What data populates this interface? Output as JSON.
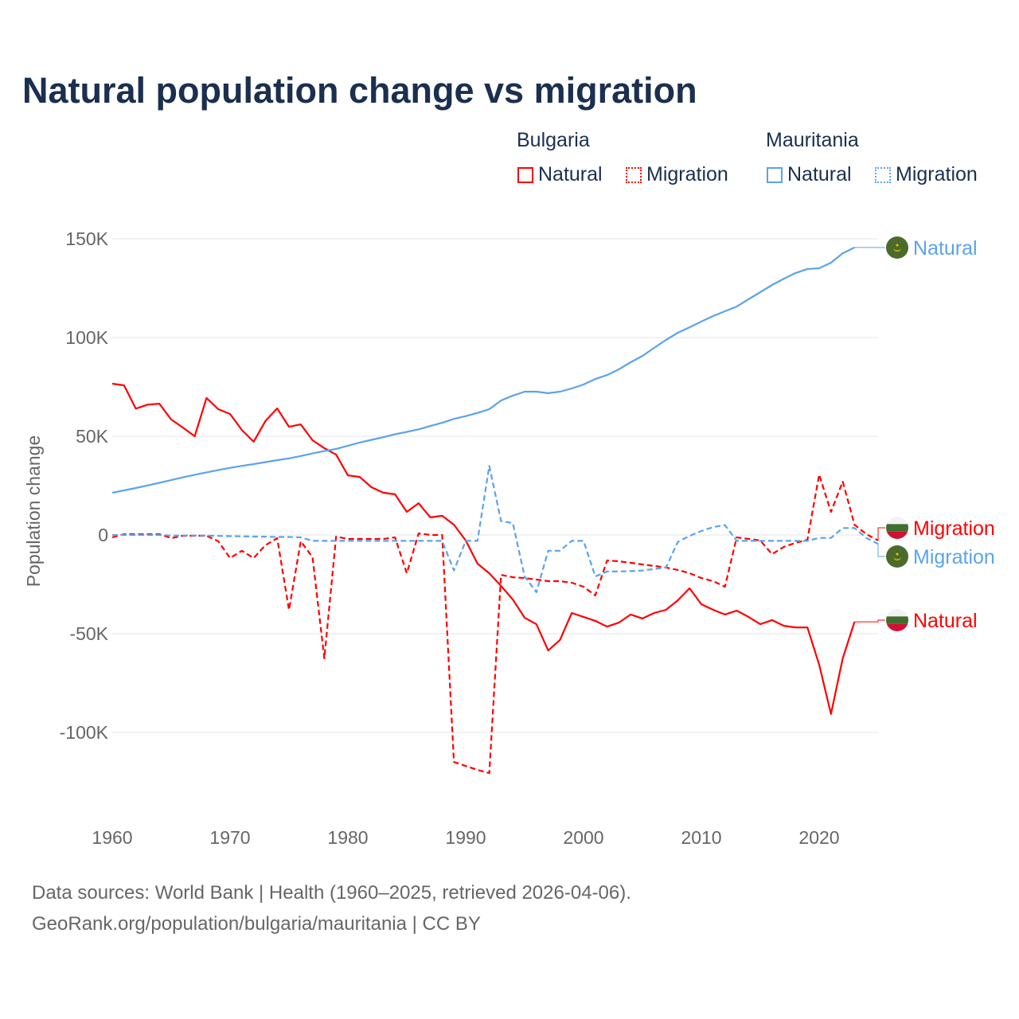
{
  "title": "Natural population change vs migration",
  "legend": {
    "groups": [
      {
        "name": "Bulgaria",
        "items": [
          "Natural",
          "Migration"
        ],
        "color": "#ff0000"
      },
      {
        "name": "Mauritania",
        "items": [
          "Natural",
          "Migration"
        ],
        "color": "#5ba3eb"
      }
    ]
  },
  "footer": {
    "line1": "Data sources: World Bank | Health (1960–2025, retrieved 2026-04-06).",
    "line2": "GeoRank.org/population/bulgaria/mauritania | CC BY"
  },
  "end_labels": [
    {
      "series": "mau_nat",
      "text": "Natural",
      "country": "Mauritania"
    },
    {
      "series": "bul_mig",
      "text": "Migration",
      "country": "Bulgaria"
    },
    {
      "series": "mau_mig",
      "text": "Migration",
      "country": "Mauritania"
    },
    {
      "series": "bul_nat",
      "text": "Natural",
      "country": "Bulgaria"
    }
  ],
  "chart_data": {
    "type": "line",
    "title": "Natural population change vs migration",
    "xlabel": "",
    "ylabel": "Population change",
    "xlim": [
      1960,
      2025
    ],
    "ylim": [
      -130000,
      160000
    ],
    "x_ticks": [
      1960,
      1970,
      1980,
      1990,
      2000,
      2010,
      2020
    ],
    "y_ticks": [
      {
        "value": 150000,
        "label": "150K"
      },
      {
        "value": 100000,
        "label": "100K"
      },
      {
        "value": 50000,
        "label": "50K"
      },
      {
        "value": 0,
        "label": "0"
      },
      {
        "value": -50000,
        "label": "-50K"
      },
      {
        "value": -100000,
        "label": "-100K"
      }
    ],
    "grid": true,
    "legend_position": "top-right",
    "series": [
      {
        "id": "bul_nat",
        "name": "Bulgaria Natural",
        "color": "#ff0000",
        "dash": "solid",
        "start": 1960,
        "values": [
          76600,
          75800,
          64000,
          66000,
          66500,
          58500,
          54400,
          50000,
          69400,
          63700,
          61300,
          53200,
          47200,
          57700,
          64100,
          54800,
          56000,
          48000,
          44000,
          40700,
          30200,
          29400,
          24200,
          21400,
          20600,
          11700,
          16100,
          8900,
          9700,
          5200,
          -2800,
          -14500,
          -19400,
          -25800,
          -32700,
          -41900,
          -45200,
          -58500,
          -53200,
          -39500,
          -41500,
          -43500,
          -46400,
          -44400,
          -40300,
          -42300,
          -39500,
          -37900,
          -33100,
          -27000,
          -35100,
          -37900,
          -40300,
          -38300,
          -41500,
          -45200,
          -43100,
          -46000,
          -46800,
          -46800,
          -65700,
          -90700,
          -62500,
          -44000
        ]
      },
      {
        "id": "bul_mig",
        "name": "Bulgaria Migration",
        "color": "#ff0000",
        "dash": "dashed",
        "start": 1960,
        "values": [
          -1200,
          400,
          400,
          400,
          400,
          -1600,
          -400,
          -400,
          -400,
          -3200,
          -11700,
          -8000,
          -11700,
          -5200,
          -1600,
          -37900,
          -3200,
          -11300,
          -62500,
          -800,
          -2000,
          -2000,
          -2000,
          -2000,
          -1200,
          -19400,
          800,
          0,
          0,
          -115000,
          -117000,
          -119000,
          -120600,
          -20200,
          -21400,
          -21800,
          -22600,
          -23400,
          -23400,
          -24200,
          -26200,
          -30600,
          -12900,
          -13300,
          -14100,
          -14900,
          -15700,
          -16500,
          -17700,
          -19400,
          -21800,
          -23400,
          -26200,
          -1200,
          -2000,
          -2800,
          -9700,
          -6000,
          -4000,
          -2400,
          30600,
          11700,
          27000,
          5200,
          400,
          -2800
        ]
      },
      {
        "id": "mau_nat",
        "name": "Mauritania Natural",
        "color": "#5ba3eb",
        "dash": "solid",
        "start": 1960,
        "values": [
          21400,
          22600,
          23800,
          25100,
          26400,
          27800,
          29200,
          30500,
          31700,
          32900,
          34000,
          35000,
          35900,
          36900,
          37900,
          38800,
          40000,
          41300,
          42500,
          43600,
          45200,
          46800,
          48200,
          49500,
          51000,
          52200,
          53500,
          55200,
          56800,
          58800,
          60200,
          61800,
          63700,
          68100,
          70600,
          72600,
          72600,
          71800,
          72600,
          74200,
          76200,
          79000,
          81000,
          83900,
          87500,
          90700,
          94800,
          98800,
          102400,
          105200,
          108100,
          110900,
          113300,
          115700,
          119400,
          123000,
          126600,
          129800,
          132700,
          134700,
          135100,
          137900,
          142700,
          145600
        ]
      },
      {
        "id": "mau_mig",
        "name": "Mauritania Migration",
        "color": "#5ba3eb",
        "dash": "dashed",
        "start": 1960,
        "values": [
          0,
          0,
          0,
          0,
          0,
          -300,
          -300,
          -300,
          -300,
          -500,
          -600,
          -700,
          -800,
          -900,
          -1000,
          -1000,
          -1200,
          -3000,
          -3000,
          -3000,
          -3000,
          -3000,
          -3000,
          -3000,
          -3000,
          -3000,
          -3000,
          -3000,
          -3000,
          -18000,
          -3000,
          -3000,
          35000,
          7000,
          6000,
          -21000,
          -29000,
          -8000,
          -8000,
          -3000,
          -3000,
          -21000,
          -18500,
          -18500,
          -18300,
          -18000,
          -17200,
          -16500,
          -3500,
          -500,
          2000,
          4000,
          5000,
          -3000,
          -3000,
          -3000,
          -3000,
          -3000,
          -3000,
          -3000,
          -1500,
          -1500,
          3500,
          3500,
          -1500,
          -4500
        ]
      }
    ]
  }
}
